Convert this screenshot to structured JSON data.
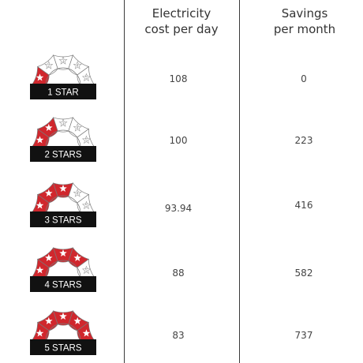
{
  "headers": {
    "electricity": "Electricity\ncost per day",
    "savings": "Savings\nper month"
  },
  "colors": {
    "accent": "#d0272d",
    "label_bg": "#111111",
    "label_text": "#ffffff"
  },
  "rows": [
    {
      "label": "1 STAR",
      "stars": 1,
      "electricity_cost": "108",
      "savings": "0"
    },
    {
      "label": "2 STARS",
      "stars": 2,
      "electricity_cost": "100",
      "savings": "223"
    },
    {
      "label": "3 STARS",
      "stars": 3,
      "electricity_cost": "93.94",
      "savings": "416"
    },
    {
      "label": "4 STARS",
      "stars": 4,
      "electricity_cost": "88",
      "savings": "582"
    },
    {
      "label": "5 STARS",
      "stars": 5,
      "electricity_cost": "83",
      "savings": "737"
    }
  ],
  "star_numbers": [
    "1",
    "2",
    "3",
    "4",
    "5"
  ]
}
